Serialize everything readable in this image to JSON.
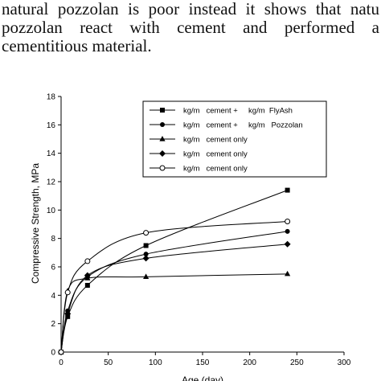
{
  "paragraph": {
    "lines": [
      "natural pozzolan is poor instead it shows that natu",
      "pozzolan react with cement and performed a",
      "cementitious material."
    ]
  },
  "chart_data": {
    "type": "line",
    "xlabel": "Age (day)",
    "ylabel": "Compressive Strength, MPa",
    "xlim": [
      0,
      300
    ],
    "ylim": [
      0,
      18
    ],
    "xticks": [
      0,
      50,
      100,
      150,
      200,
      250,
      300
    ],
    "yticks": [
      0,
      2,
      4,
      6,
      8,
      10,
      12,
      14,
      16,
      18
    ],
    "grid": false,
    "legend_position": "top-right",
    "series": [
      {
        "name": "kg/m   cement +     kg/m  FlyAsh",
        "marker": "square-filled",
        "x": [
          0,
          7,
          28,
          90,
          240
        ],
        "y": [
          0,
          2.5,
          4.7,
          7.5,
          11.4
        ]
      },
      {
        "name": "kg/m   cement +     kg/m   Pozzolan",
        "marker": "circle-filled",
        "x": [
          0,
          7,
          28,
          90,
          240
        ],
        "y": [
          0,
          2.9,
          5.3,
          6.9,
          8.5
        ]
      },
      {
        "name": "kg/m   cement only",
        "marker": "triangle-filled",
        "x": [
          0,
          7,
          28,
          90,
          240
        ],
        "y": [
          0,
          4.3,
          5.2,
          5.3,
          5.5
        ]
      },
      {
        "name": "kg/m   cement only",
        "marker": "diamond-filled",
        "x": [
          0,
          7,
          28,
          90,
          240
        ],
        "y": [
          0,
          2.7,
          5.4,
          6.6,
          7.6
        ]
      },
      {
        "name": "kg/m   cement only",
        "marker": "circle-open",
        "x": [
          0,
          7,
          28,
          90,
          240
        ],
        "y": [
          0,
          4.2,
          6.4,
          8.4,
          9.2
        ]
      }
    ]
  }
}
